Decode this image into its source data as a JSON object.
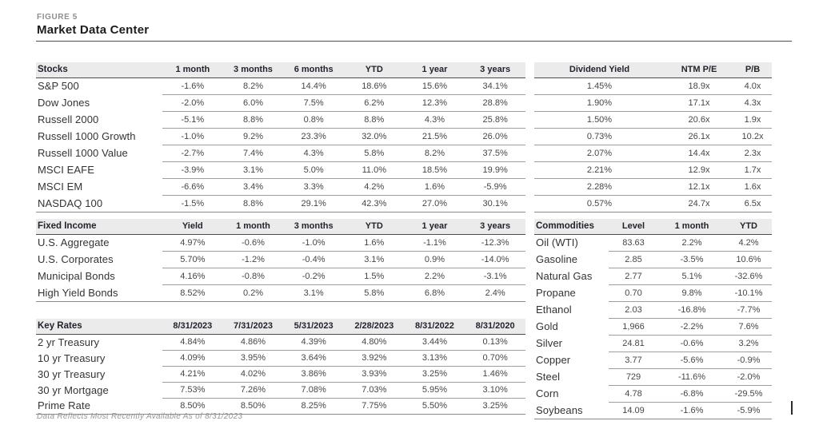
{
  "figure_label": "FIGURE 5",
  "title": "Market Data Center",
  "footnote": "Data Reflects Most Recently Available As of 8/31/2023",
  "colors": {
    "header_bg": "#ebebeb",
    "header_text": "#23232e",
    "body_text": "#464646",
    "rule_dark": "#4d4d4d",
    "rule_light": "#9e9e9e",
    "muted": "#8f8f8f"
  },
  "tables": {
    "stocks": {
      "label": "Stocks",
      "columns": [
        "1 month",
        "3 months",
        "6 months",
        "YTD",
        "1 year",
        "3 years"
      ],
      "rows": [
        {
          "name": "S&P 500",
          "values": [
            "-1.6%",
            "8.2%",
            "14.4%",
            "18.6%",
            "15.6%",
            "34.1%"
          ]
        },
        {
          "name": "Dow Jones",
          "values": [
            "-2.0%",
            "6.0%",
            "7.5%",
            "6.2%",
            "12.3%",
            "28.8%"
          ]
        },
        {
          "name": "Russell 2000",
          "values": [
            "-5.1%",
            "8.8%",
            "0.8%",
            "8.8%",
            "4.3%",
            "25.8%"
          ]
        },
        {
          "name": "Russell 1000 Growth",
          "values": [
            "-1.0%",
            "9.2%",
            "23.3%",
            "32.0%",
            "21.5%",
            "26.0%"
          ]
        },
        {
          "name": "Russell 1000 Value",
          "values": [
            "-2.7%",
            "7.4%",
            "4.3%",
            "5.8%",
            "8.2%",
            "37.5%"
          ]
        },
        {
          "name": "MSCI EAFE",
          "values": [
            "-3.9%",
            "3.1%",
            "5.0%",
            "11.0%",
            "18.5%",
            "19.9%"
          ]
        },
        {
          "name": "MSCI EM",
          "values": [
            "-6.6%",
            "3.4%",
            "3.3%",
            "4.2%",
            "1.6%",
            "-5.9%"
          ]
        },
        {
          "name": "NASDAQ 100",
          "values": [
            "-1.5%",
            "8.8%",
            "29.1%",
            "42.3%",
            "27.0%",
            "30.1%"
          ]
        }
      ]
    },
    "valuation": {
      "columns": [
        "Dividend Yield",
        "NTM P/E",
        "P/B"
      ],
      "rows": [
        [
          "1.45%",
          "18.9x",
          "4.0x"
        ],
        [
          "1.90%",
          "17.1x",
          "4.3x"
        ],
        [
          "1.50%",
          "20.6x",
          "1.9x"
        ],
        [
          "0.73%",
          "26.1x",
          "10.2x"
        ],
        [
          "2.07%",
          "14.4x",
          "2.3x"
        ],
        [
          "2.21%",
          "12.9x",
          "1.7x"
        ],
        [
          "2.28%",
          "12.1x",
          "1.6x"
        ],
        [
          "0.57%",
          "24.7x",
          "6.5x"
        ]
      ]
    },
    "fixed_income": {
      "label": "Fixed Income",
      "columns": [
        "Yield",
        "1 month",
        "3 months",
        "YTD",
        "1 year",
        "3 years"
      ],
      "rows": [
        {
          "name": "U.S. Aggregate",
          "values": [
            "4.97%",
            "-0.6%",
            "-1.0%",
            "1.6%",
            "-1.1%",
            "-12.3%"
          ]
        },
        {
          "name": "U.S. Corporates",
          "values": [
            "5.70%",
            "-1.2%",
            "-0.4%",
            "3.1%",
            "0.9%",
            "-14.0%"
          ]
        },
        {
          "name": "Municipal Bonds",
          "values": [
            "4.16%",
            "-0.8%",
            "-0.2%",
            "1.5%",
            "2.2%",
            "-3.1%"
          ]
        },
        {
          "name": "High Yield Bonds",
          "values": [
            "8.52%",
            "0.2%",
            "3.1%",
            "5.8%",
            "6.8%",
            "2.4%"
          ]
        }
      ]
    },
    "key_rates": {
      "label": "Key Rates",
      "columns": [
        "8/31/2023",
        "7/31/2023",
        "5/31/2023",
        "2/28/2023",
        "8/31/2022",
        "8/31/2020"
      ],
      "rows": [
        {
          "name": "2 yr Treasury",
          "values": [
            "4.84%",
            "4.86%",
            "4.39%",
            "4.80%",
            "3.44%",
            "0.13%"
          ]
        },
        {
          "name": "10 yr Treasury",
          "values": [
            "4.09%",
            "3.95%",
            "3.64%",
            "3.92%",
            "3.13%",
            "0.70%"
          ]
        },
        {
          "name": "30 yr Treasury",
          "values": [
            "4.21%",
            "4.02%",
            "3.86%",
            "3.93%",
            "3.25%",
            "1.46%"
          ]
        },
        {
          "name": "30 yr Mortgage",
          "values": [
            "7.53%",
            "7.26%",
            "7.08%",
            "7.03%",
            "5.95%",
            "3.10%"
          ]
        },
        {
          "name": "Prime Rate",
          "values": [
            "8.50%",
            "8.50%",
            "8.25%",
            "7.75%",
            "5.50%",
            "3.25%"
          ]
        }
      ]
    },
    "commodities": {
      "label": "Commodities",
      "columns": [
        "Level",
        "1 month",
        "YTD"
      ],
      "rows": [
        {
          "name": "Oil (WTI)",
          "values": [
            "83.63",
            "2.2%",
            "4.2%"
          ]
        },
        {
          "name": "Gasoline",
          "values": [
            "2.85",
            "-3.5%",
            "10.6%"
          ]
        },
        {
          "name": "Natural Gas",
          "values": [
            "2.77",
            "5.1%",
            "-32.6%"
          ]
        },
        {
          "name": "Propane",
          "values": [
            "0.70",
            "9.8%",
            "-10.1%"
          ]
        },
        {
          "name": "Ethanol",
          "values": [
            "2.03",
            "-16.8%",
            "-7.7%"
          ]
        },
        {
          "name": "Gold",
          "values": [
            "1,966",
            "-2.2%",
            "7.6%"
          ]
        },
        {
          "name": "Silver",
          "values": [
            "24.81",
            "-0.6%",
            "3.2%"
          ]
        },
        {
          "name": "Copper",
          "values": [
            "3.77",
            "-5.6%",
            "-0.9%"
          ]
        },
        {
          "name": "Steel",
          "values": [
            "729",
            "-11.6%",
            "-2.0%"
          ]
        },
        {
          "name": "Corn",
          "values": [
            "4.78",
            "-6.8%",
            "-29.5%"
          ]
        },
        {
          "name": "Soybeans",
          "values": [
            "14.09",
            "-1.6%",
            "-5.9%"
          ]
        }
      ]
    }
  }
}
